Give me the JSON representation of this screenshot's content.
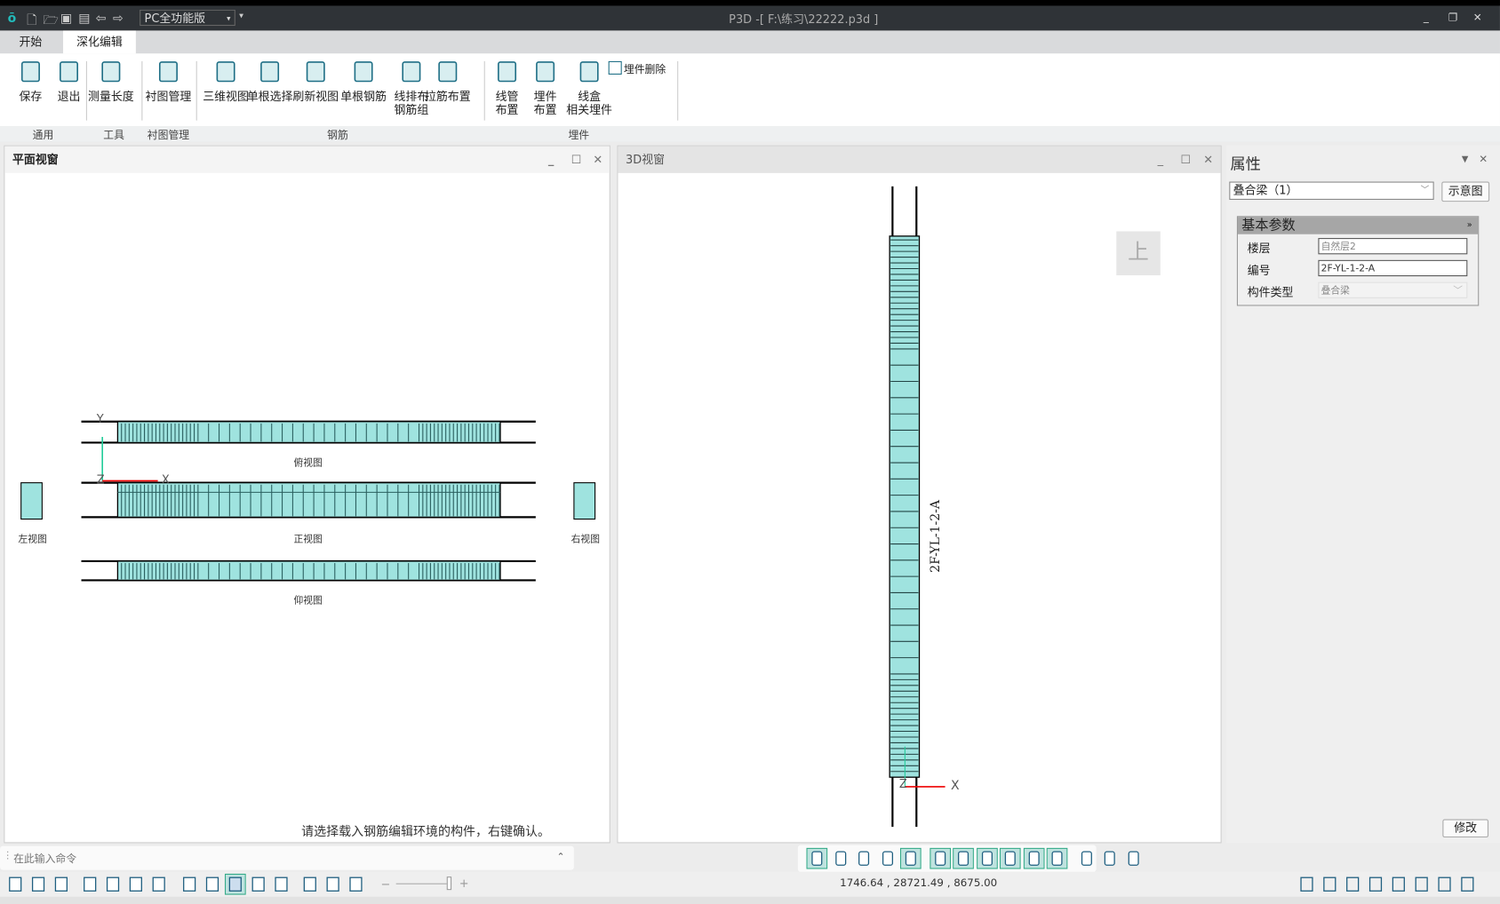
{
  "titlebar": {
    "edition": "PC全功能版",
    "title": "P3D -[ F:\\练习\\22222.p3d ]"
  },
  "tabs": [
    {
      "label": "开始",
      "active": false
    },
    {
      "label": "深化编辑",
      "active": true
    }
  ],
  "ribbon": {
    "buttons": [
      {
        "label": "保存",
        "icon": "save-icon"
      },
      {
        "label": "退出",
        "icon": "power-icon"
      },
      {
        "label": "测量长度",
        "icon": "ruler-icon"
      },
      {
        "label": "衬图管理",
        "icon": "layers-icon"
      },
      {
        "label": "三维视图",
        "icon": "cube-view-icon"
      },
      {
        "label": "单根选择",
        "icon": "select-pointer-icon"
      },
      {
        "label": "刷新视图",
        "icon": "refresh-view-icon"
      },
      {
        "label": "单根钢筋",
        "icon": "u-bar-icon"
      },
      {
        "label": "线排布",
        "label2": "钢筋组",
        "icon": "bar-group-icon"
      },
      {
        "label": "拉筋布置",
        "icon": "grid-icon"
      },
      {
        "label": "线管",
        "label2": "布置",
        "icon": "pipe-icon"
      },
      {
        "label": "埋件",
        "label2": "布置",
        "icon": "embed-icon"
      },
      {
        "label": "线盒",
        "label2": "相关埋件",
        "icon": "box-icon"
      }
    ],
    "small_button": {
      "label": "埋件删除",
      "icon": "embed-delete-icon"
    },
    "groups": [
      "通用",
      "工具",
      "衬图管理",
      "钢筋",
      "埋件"
    ]
  },
  "plan_view": {
    "title": "平面视窗",
    "labels": {
      "top": "俯视图",
      "front": "正视图",
      "bottom": "仰视图",
      "left": "左视图",
      "right": "右视图"
    },
    "axes": {
      "x": "X",
      "y": "Y",
      "z": "Z"
    },
    "prompt": "请选择载入钢筋编辑环境的构件，右键确认。"
  },
  "view3d": {
    "title": "3D视窗",
    "beam_label": "2F-YL-1-2-A",
    "view_cube": "上",
    "axes": {
      "x": "X",
      "z": "Z"
    }
  },
  "properties": {
    "title": "属性",
    "selector": "叠合梁（1）",
    "diagram_button": "示意图",
    "section": "基本参数",
    "rows": [
      {
        "label": "楼层",
        "value": "自然层2"
      },
      {
        "label": "编号",
        "value": "2F-YL-1-2-A"
      },
      {
        "label": "构件类型",
        "value": "叠合梁"
      }
    ],
    "modify_button": "修改"
  },
  "command": {
    "placeholder": "在此输入命令"
  },
  "status": {
    "coords": "1746.64 , 28721.49 , 8675.00"
  },
  "colors": {
    "accent": "#2a9d9d",
    "beam_fill": "#9fe3df",
    "titlebar": "#2f3337"
  }
}
